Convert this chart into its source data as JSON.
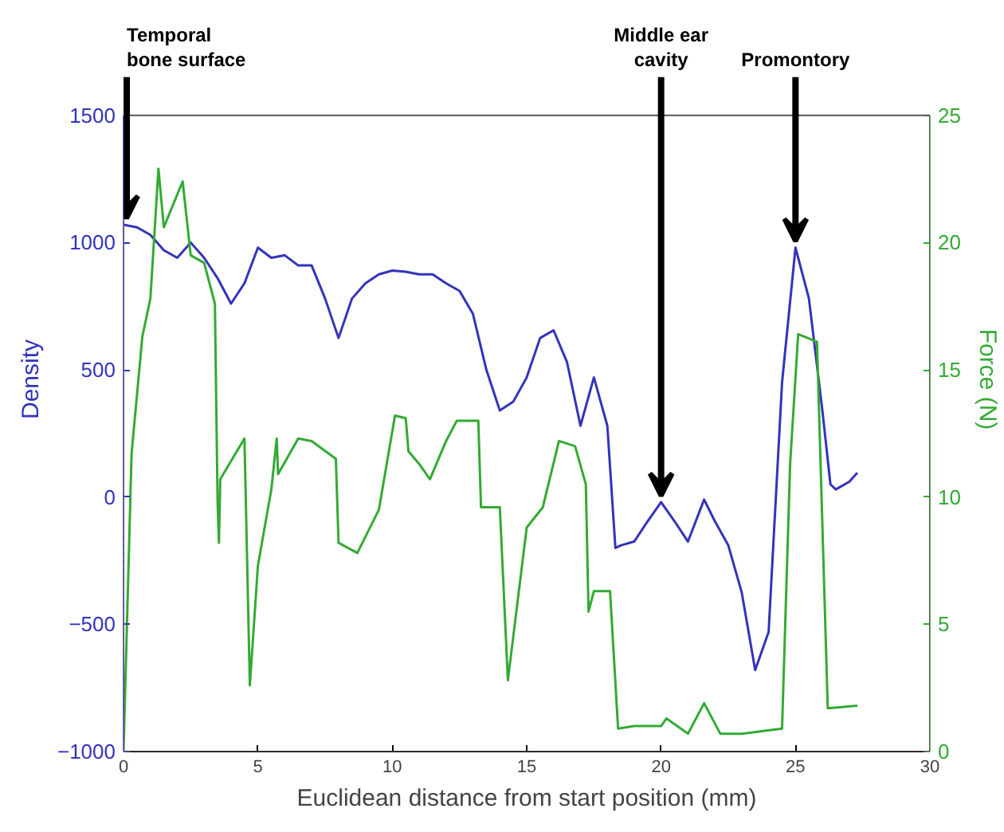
{
  "chart_data": {
    "type": "line",
    "xlabel": "Euclidean distance from start position (mm)",
    "ylabel": "Density",
    "y2label": "Force (N)",
    "xlim": [
      0,
      30
    ],
    "xticks": [
      0,
      5,
      10,
      15,
      20,
      25,
      30
    ],
    "ylim": [
      -1000,
      1500
    ],
    "yticks": [
      -1000,
      -500,
      0,
      500,
      1000,
      1500
    ],
    "y2lim": [
      0,
      25
    ],
    "y2ticks": [
      0,
      5,
      10,
      15,
      20,
      25
    ],
    "grid": false,
    "marker": "none",
    "line_style": "solid",
    "series": [
      {
        "color": "#3333bb",
        "x": [
          0,
          0.5,
          1,
          1.5,
          2,
          2.5,
          3,
          3.5,
          4,
          4.5,
          5,
          5.5,
          6,
          6.5,
          7,
          7.5,
          8,
          8.5,
          9,
          9.5,
          10,
          10.5,
          11,
          11.5,
          12,
          12.5,
          13,
          13.5,
          14,
          14.5,
          15,
          15.5,
          16,
          16.5,
          17,
          17.5,
          18,
          18.3,
          18.5,
          19,
          19.5,
          20,
          20.5,
          21,
          21.6,
          22,
          22.5,
          23,
          23.5,
          24,
          24.5,
          25,
          25.5,
          26,
          26.3,
          26.5,
          27,
          27.3
        ],
        "values": [
          1070,
          1060,
          1030,
          970,
          940,
          1000,
          940,
          860,
          760,
          840,
          980,
          940,
          950,
          910,
          910,
          780,
          625,
          780,
          840,
          875,
          890,
          885,
          875,
          875,
          840,
          810,
          720,
          500,
          340,
          375,
          470,
          625,
          655,
          530,
          280,
          470,
          280,
          -200,
          -190,
          -175,
          -95,
          -20,
          -95,
          -175,
          -10,
          -95,
          -190,
          -375,
          -680,
          -530,
          450,
          980,
          780,
          340,
          50,
          30,
          60,
          95
        ]
      },
      {
        "axis": "y2",
        "color": "#33aa33",
        "x": [
          0,
          0.3,
          0.7,
          1.0,
          1.3,
          1.5,
          2.2,
          2.5,
          3.0,
          3.4,
          3.5,
          3.55,
          3.6,
          4.5,
          4.7,
          5,
          5.5,
          5.7,
          5.75,
          6.5,
          7,
          7.9,
          8.0,
          8.7,
          9.5,
          10.1,
          10.5,
          10.6,
          11,
          11.4,
          12,
          12.4,
          13.2,
          13.3,
          14,
          14.3,
          15,
          15.6,
          16.2,
          16.8,
          17.2,
          17.3,
          17.5,
          18.1,
          18.4,
          19,
          20,
          20.2,
          21,
          21.6,
          22.2,
          23,
          24.5,
          24.8,
          25.1,
          25.8,
          26.2,
          27.3
        ],
        "values": [
          0,
          11.7,
          16.3,
          17.8,
          22.9,
          20.6,
          22.4,
          19.5,
          19.2,
          17.6,
          9.8,
          8.2,
          10.7,
          12.3,
          2.6,
          7.3,
          10.3,
          12.3,
          10.9,
          12.3,
          12.2,
          11.5,
          8.2,
          7.8,
          9.5,
          13.2,
          13.1,
          11.8,
          11.3,
          10.7,
          12.2,
          13.0,
          13.0,
          9.6,
          9.6,
          2.8,
          8.8,
          9.6,
          12.2,
          12.0,
          10.5,
          5.5,
          6.3,
          6.3,
          0.9,
          1.0,
          1.0,
          1.3,
          0.7,
          1.9,
          0.7,
          0.7,
          0.9,
          11.3,
          16.4,
          16.1,
          1.7,
          1.8
        ]
      }
    ],
    "annotations": [
      {
        "text": "Temporal\nbone surface",
        "x": 0,
        "y": 1070
      },
      {
        "text": "Middle ear\ncavity",
        "x": 20,
        "y": -20
      },
      {
        "text": "Promontory",
        "x": 25,
        "y": 980
      }
    ]
  }
}
